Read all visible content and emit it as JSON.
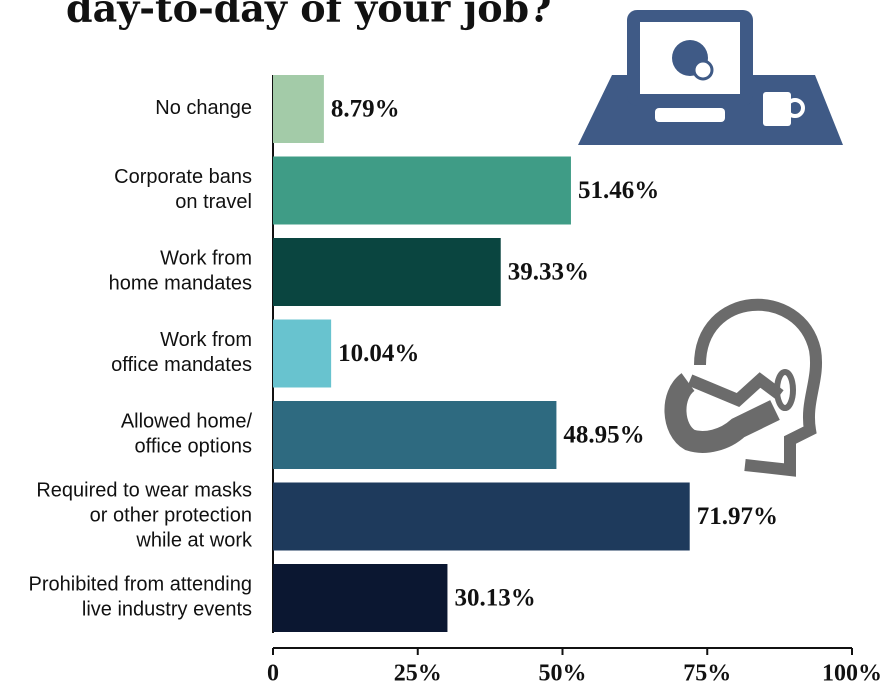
{
  "chart_data": {
    "type": "hbar",
    "title": "day-to-day of your job?",
    "categories": [
      [
        "No change"
      ],
      [
        "Corporate bans",
        "on travel"
      ],
      [
        "Work from",
        "home mandates"
      ],
      [
        "Work from",
        "office mandates"
      ],
      [
        "Allowed home/",
        "office options"
      ],
      [
        "Required to wear masks",
        "or other protection",
        "while at work"
      ],
      [
        "Prohibited from attending",
        "live industry events"
      ]
    ],
    "values": [
      8.79,
      51.46,
      39.33,
      10.04,
      48.95,
      71.97,
      30.13
    ],
    "value_labels": [
      "8.79%",
      "51.46%",
      "39.33%",
      "10.04%",
      "48.95%",
      "71.97%",
      "30.13%"
    ],
    "colors": [
      "#a3cba8",
      "#3f9c86",
      "#0a4540",
      "#68c3cf",
      "#2e6a80",
      "#1e3a5c",
      "#0b1731"
    ],
    "xlim": [
      0,
      100
    ],
    "xticks": [
      0,
      {
        "value": 25,
        "label": "25%"
      },
      {
        "value": 50,
        "label": "50%"
      },
      {
        "value": 75,
        "label": "75%"
      },
      {
        "value": 100,
        "label": "100%"
      }
    ],
    "grid": false
  }
}
